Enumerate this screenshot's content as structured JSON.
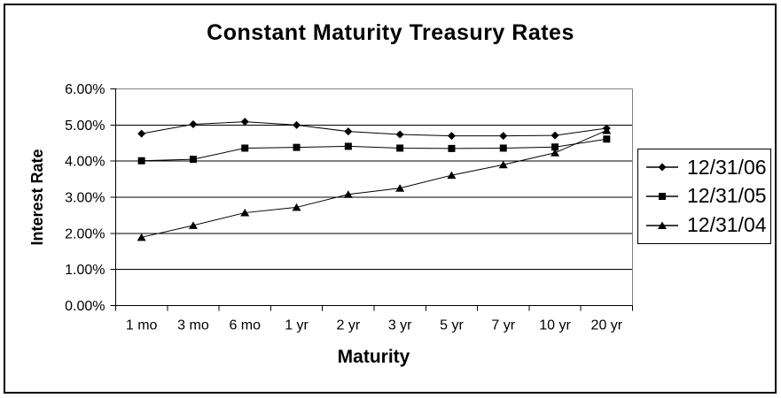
{
  "chart_data": {
    "type": "line",
    "title": "Constant Maturity Treasury Rates",
    "xlabel": "Maturity",
    "ylabel": "Interest Rate",
    "categories": [
      "1 mo",
      "3 mo",
      "6 mo",
      "1 yr",
      "2 yr",
      "3 yr",
      "5 yr",
      "7 yr",
      "10 yr",
      "20 yr"
    ],
    "series": [
      {
        "name": "12/31/06",
        "marker": "diamond",
        "values": [
          4.76,
          5.02,
          5.09,
          5.0,
          4.82,
          4.74,
          4.7,
          4.7,
          4.71,
          4.91
        ]
      },
      {
        "name": "12/31/05",
        "marker": "square",
        "values": [
          4.01,
          4.05,
          4.36,
          4.38,
          4.41,
          4.36,
          4.35,
          4.36,
          4.39,
          4.61
        ]
      },
      {
        "name": "12/31/04",
        "marker": "triangle",
        "values": [
          1.89,
          2.22,
          2.57,
          2.72,
          3.08,
          3.25,
          3.61,
          3.9,
          4.23,
          4.85
        ]
      }
    ],
    "y_ticks": [
      {
        "label": "6.00%",
        "value": 6
      },
      {
        "label": "5.00%",
        "value": 5
      },
      {
        "label": "4.00%",
        "value": 4
      },
      {
        "label": "3.00%",
        "value": 3
      },
      {
        "label": "2.00%",
        "value": 2
      },
      {
        "label": "1.00%",
        "value": 1
      },
      {
        "label": "0.00%",
        "value": 0
      }
    ],
    "ylim": [
      0,
      6
    ],
    "grid": "horizontal",
    "legend_position": "right",
    "colors": {
      "series": "#000000",
      "gridline": "#000000",
      "plot_border": "#808080",
      "background": "#ffffff"
    }
  }
}
